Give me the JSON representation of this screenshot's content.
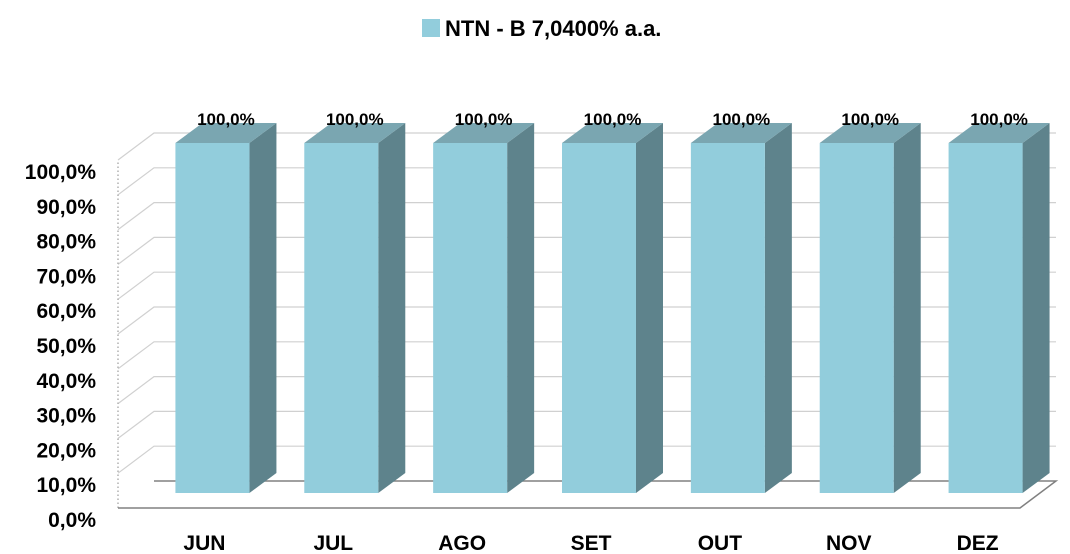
{
  "chart_data": {
    "type": "bar",
    "style": "3d-column",
    "categories": [
      "JUN",
      "JUL",
      "AGO",
      "SET",
      "OUT",
      "NOV",
      "DEZ"
    ],
    "series": [
      {
        "name": "NTN - B 7,0400% a.a.",
        "values": [
          100.0,
          100.0,
          100.0,
          100.0,
          100.0,
          100.0,
          100.0
        ],
        "data_labels": [
          "100,0%",
          "100,0%",
          "100,0%",
          "100,0%",
          "100,0%",
          "100,0%",
          "100,0%"
        ]
      }
    ],
    "yticks": [
      "0,0%",
      "10,0%",
      "20,0%",
      "30,0%",
      "40,0%",
      "50,0%",
      "60,0%",
      "70,0%",
      "80,0%",
      "90,0%",
      "100,0%"
    ],
    "ylim": [
      0,
      100
    ],
    "grid": true,
    "legend_position": "top-center",
    "colors": {
      "bar_front": "#92CDDC",
      "bar_top": "#7AA6B1",
      "bar_side": "#5E838C",
      "gridline": "#D0D0D0",
      "floor": "#808080"
    }
  }
}
